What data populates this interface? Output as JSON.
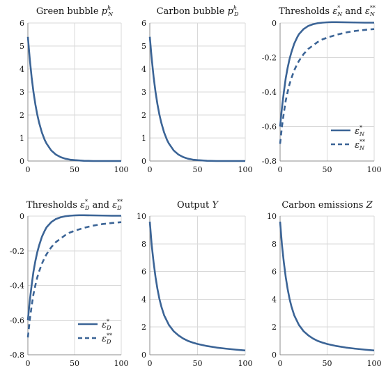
{
  "chart_data": [
    {
      "type": "line",
      "title": {
        "base": "Green bubble ",
        "var": "p",
        "sub": "N",
        "sup": "h"
      },
      "xlim": [
        0,
        100
      ],
      "ylim": [
        0,
        6
      ],
      "xticks": [
        "0",
        "50",
        "100"
      ],
      "yticks": [
        "0",
        "1",
        "2",
        "3",
        "4",
        "5",
        "6"
      ],
      "grid": "horizontal",
      "series": [
        {
          "style": "solid",
          "x": [
            0,
            2,
            4,
            6,
            8,
            10,
            12,
            15,
            18,
            20,
            25,
            30,
            35,
            40,
            45,
            50,
            60,
            70,
            80,
            90,
            100
          ],
          "y": [
            5.4,
            4.45,
            3.65,
            3.0,
            2.47,
            2.03,
            1.67,
            1.24,
            0.92,
            0.76,
            0.46,
            0.28,
            0.17,
            0.1,
            0.06,
            0.04,
            0.01,
            0.0,
            0.0,
            0.0,
            0.0
          ]
        }
      ]
    },
    {
      "type": "line",
      "title": {
        "base": "Carbon bubble ",
        "var": "p",
        "sub": "D",
        "sup": "h"
      },
      "xlim": [
        0,
        100
      ],
      "ylim": [
        0,
        6
      ],
      "xticks": [
        "0",
        "50",
        "100"
      ],
      "yticks": [
        "0",
        "1",
        "2",
        "3",
        "4",
        "5",
        "6"
      ],
      "grid": "horizontal",
      "series": [
        {
          "style": "solid",
          "x": [
            0,
            2,
            4,
            6,
            8,
            10,
            12,
            15,
            18,
            20,
            25,
            30,
            35,
            40,
            45,
            50,
            60,
            70,
            80,
            90,
            100
          ],
          "y": [
            5.4,
            4.45,
            3.65,
            3.0,
            2.47,
            2.03,
            1.67,
            1.24,
            0.92,
            0.76,
            0.46,
            0.28,
            0.17,
            0.1,
            0.06,
            0.04,
            0.01,
            0.0,
            0.0,
            0.0,
            0.0
          ]
        }
      ]
    },
    {
      "type": "line",
      "title": {
        "base": "Thresholds ",
        "v1": "ε",
        "s1": "N",
        "p1": "*",
        "mid": " and ",
        "v2": "ε",
        "s2": "N",
        "p2": "**"
      },
      "xlim": [
        0,
        100
      ],
      "ylim": [
        -0.8,
        0
      ],
      "xticks": [
        "0",
        "50",
        "100"
      ],
      "yticks": [
        "-0.8",
        "-0.6",
        "-0.4",
        "-0.2",
        "0"
      ],
      "grid": "horizontal",
      "legend": "bottom-right",
      "series": [
        {
          "style": "solid",
          "legend": {
            "var": "ε",
            "sub": "N",
            "sup": "*"
          },
          "x": [
            0,
            2,
            4,
            6,
            8,
            10,
            12,
            15,
            18,
            20,
            25,
            30,
            35,
            40,
            45,
            50,
            55,
            60,
            70,
            80,
            90,
            100
          ],
          "y": [
            -0.6,
            -0.49,
            -0.4,
            -0.32,
            -0.26,
            -0.21,
            -0.17,
            -0.12,
            -0.085,
            -0.065,
            -0.035,
            -0.017,
            -0.007,
            -0.001,
            0.002,
            0.004,
            0.005,
            0.005,
            0.004,
            0.003,
            0.002,
            0.002
          ]
        },
        {
          "style": "dashed",
          "legend": {
            "var": "ε",
            "sub": "N",
            "sup": "**"
          },
          "x": [
            0,
            2,
            4,
            6,
            8,
            10,
            12,
            15,
            18,
            20,
            25,
            30,
            35,
            40,
            45,
            50,
            60,
            70,
            80,
            90,
            100
          ],
          "y": [
            -0.7,
            -0.6,
            -0.52,
            -0.45,
            -0.4,
            -0.355,
            -0.32,
            -0.275,
            -0.24,
            -0.22,
            -0.18,
            -0.15,
            -0.13,
            -0.11,
            -0.095,
            -0.085,
            -0.068,
            -0.055,
            -0.046,
            -0.04,
            -0.035
          ]
        }
      ]
    },
    {
      "type": "line",
      "title": {
        "base": "Thresholds ",
        "v1": "ε",
        "s1": "D",
        "p1": "*",
        "mid": " and ",
        "v2": "ε",
        "s2": "D",
        "p2": "**"
      },
      "xlim": [
        0,
        100
      ],
      "ylim": [
        -0.8,
        0
      ],
      "xticks": [
        "0",
        "50",
        "100"
      ],
      "yticks": [
        "-0.8",
        "-0.6",
        "-0.4",
        "-0.2",
        "0"
      ],
      "grid": "horizontal",
      "legend": "bottom-right",
      "series": [
        {
          "style": "solid",
          "legend": {
            "var": "ε",
            "sub": "D",
            "sup": "*"
          },
          "x": [
            0,
            2,
            4,
            6,
            8,
            10,
            12,
            15,
            18,
            20,
            25,
            30,
            35,
            40,
            45,
            50,
            55,
            60,
            70,
            80,
            90,
            100
          ],
          "y": [
            -0.6,
            -0.49,
            -0.4,
            -0.32,
            -0.26,
            -0.21,
            -0.17,
            -0.12,
            -0.085,
            -0.065,
            -0.035,
            -0.017,
            -0.007,
            -0.001,
            0.002,
            0.004,
            0.005,
            0.005,
            0.004,
            0.003,
            0.002,
            0.002
          ]
        },
        {
          "style": "dashed",
          "legend": {
            "var": "ε",
            "sub": "D",
            "sup": "**"
          },
          "x": [
            0,
            2,
            4,
            6,
            8,
            10,
            12,
            15,
            18,
            20,
            25,
            30,
            35,
            40,
            45,
            50,
            60,
            70,
            80,
            90,
            100
          ],
          "y": [
            -0.7,
            -0.6,
            -0.52,
            -0.45,
            -0.4,
            -0.355,
            -0.32,
            -0.275,
            -0.24,
            -0.22,
            -0.18,
            -0.15,
            -0.13,
            -0.11,
            -0.095,
            -0.085,
            -0.068,
            -0.055,
            -0.046,
            -0.04,
            -0.035
          ]
        }
      ]
    },
    {
      "type": "line",
      "title": {
        "base": "Output ",
        "var": "Y"
      },
      "xlim": [
        0,
        100
      ],
      "ylim": [
        0,
        10
      ],
      "xticks": [
        "0",
        "50",
        "100"
      ],
      "yticks": [
        "0",
        "2",
        "4",
        "6",
        "8",
        "10"
      ],
      "grid": "horizontal",
      "series": [
        {
          "style": "solid",
          "x": [
            0,
            2,
            4,
            6,
            8,
            10,
            12,
            15,
            20,
            25,
            30,
            35,
            40,
            45,
            50,
            60,
            70,
            80,
            90,
            100
          ],
          "y": [
            9.6,
            7.9,
            6.65,
            5.6,
            4.75,
            4.05,
            3.5,
            2.85,
            2.15,
            1.7,
            1.4,
            1.17,
            1.0,
            0.88,
            0.78,
            0.63,
            0.52,
            0.44,
            0.37,
            0.31
          ]
        }
      ]
    },
    {
      "type": "line",
      "title": {
        "base": "Carbon emissions ",
        "var": "Z"
      },
      "xlim": [
        0,
        100
      ],
      "ylim": [
        0,
        10
      ],
      "xticks": [
        "0",
        "50",
        "100"
      ],
      "yticks": [
        "0",
        "2",
        "4",
        "6",
        "8",
        "10"
      ],
      "grid": "horizontal",
      "series": [
        {
          "style": "solid",
          "x": [
            0,
            2,
            4,
            6,
            8,
            10,
            12,
            15,
            20,
            25,
            30,
            35,
            40,
            45,
            50,
            60,
            70,
            80,
            90,
            100
          ],
          "y": [
            9.6,
            7.9,
            6.65,
            5.6,
            4.75,
            4.05,
            3.5,
            2.85,
            2.15,
            1.7,
            1.4,
            1.17,
            1.0,
            0.88,
            0.78,
            0.63,
            0.52,
            0.44,
            0.37,
            0.31
          ]
        }
      ]
    }
  ],
  "style": {
    "line_color": "#3b6496",
    "grid_color": "#d9d9d9",
    "axis_color": "#8c8c8c"
  }
}
